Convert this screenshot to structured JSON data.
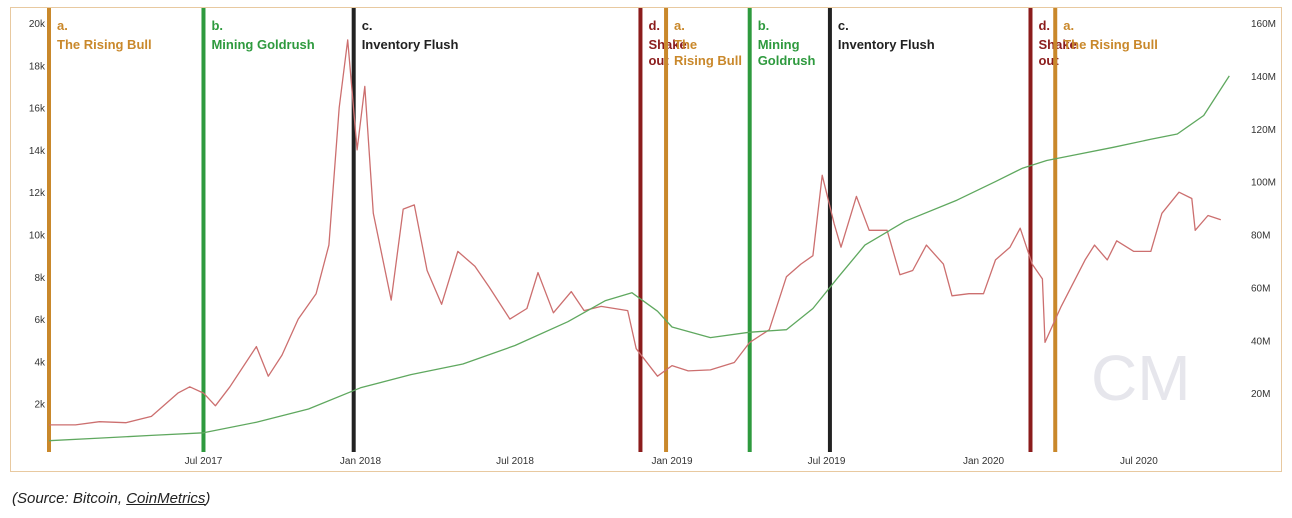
{
  "source": {
    "prefix": "(Source: Bitcoin, ",
    "link": "CoinMetrics",
    "suffix": ")"
  },
  "watermark": "CM",
  "colors": {
    "price_line": "#cc6f6f",
    "activity_line": "#5fa85f",
    "rising_bull": "#c9882b",
    "mining_goldrush": "#2e9a3e",
    "inventory_flush": "#222222",
    "shakeout": "#8b1c1c"
  },
  "chart_data": {
    "type": "line",
    "x_range": [
      "2017-01-01",
      "2020-10-31"
    ],
    "x_ticks": [
      {
        "date": "2017-07-01",
        "label": "Jul 2017"
      },
      {
        "date": "2018-01-01",
        "label": "Jan 2018"
      },
      {
        "date": "2018-07-01",
        "label": "Jul 2018"
      },
      {
        "date": "2019-01-01",
        "label": "Jan 2019"
      },
      {
        "date": "2019-07-01",
        "label": "Jul 2019"
      },
      {
        "date": "2020-01-01",
        "label": "Jan 2020"
      },
      {
        "date": "2020-07-01",
        "label": "Jul 2020"
      }
    ],
    "y_left": {
      "range": [
        0,
        20000
      ],
      "ticks": [
        {
          "value": 2000,
          "label": "2k"
        },
        {
          "value": 4000,
          "label": "4k"
        },
        {
          "value": 6000,
          "label": "6k"
        },
        {
          "value": 8000,
          "label": "8k"
        },
        {
          "value": 10000,
          "label": "10k"
        },
        {
          "value": 12000,
          "label": "12k"
        },
        {
          "value": 14000,
          "label": "14k"
        },
        {
          "value": 16000,
          "label": "16k"
        },
        {
          "value": 18000,
          "label": "18k"
        },
        {
          "value": 20000,
          "label": "20k"
        }
      ]
    },
    "y_right": {
      "range": [
        0,
        160000000
      ],
      "ticks": [
        {
          "value": 20000000,
          "label": "20M"
        },
        {
          "value": 40000000,
          "label": "40M"
        },
        {
          "value": 60000000,
          "label": "60M"
        },
        {
          "value": 80000000,
          "label": "80M"
        },
        {
          "value": 100000000,
          "label": "100M"
        },
        {
          "value": 120000000,
          "label": "120M"
        },
        {
          "value": 140000000,
          "label": "140M"
        },
        {
          "value": 160000000,
          "label": "160M"
        }
      ]
    },
    "series": [
      {
        "axis": "left",
        "color": "#cc6f6f",
        "points": [
          [
            "2017-01-01",
            1000
          ],
          [
            "2017-02-01",
            1000
          ],
          [
            "2017-03-01",
            1150
          ],
          [
            "2017-04-01",
            1100
          ],
          [
            "2017-05-01",
            1400
          ],
          [
            "2017-06-01",
            2500
          ],
          [
            "2017-06-15",
            2800
          ],
          [
            "2017-07-01",
            2500
          ],
          [
            "2017-07-15",
            1900
          ],
          [
            "2017-08-01",
            2800
          ],
          [
            "2017-09-01",
            4700
          ],
          [
            "2017-09-15",
            3300
          ],
          [
            "2017-10-01",
            4300
          ],
          [
            "2017-10-20",
            6000
          ],
          [
            "2017-11-10",
            7200
          ],
          [
            "2017-11-25",
            9500
          ],
          [
            "2017-12-07",
            16000
          ],
          [
            "2017-12-17",
            19200
          ],
          [
            "2017-12-28",
            14000
          ],
          [
            "2018-01-06",
            17000
          ],
          [
            "2018-01-16",
            11000
          ],
          [
            "2018-02-06",
            6900
          ],
          [
            "2018-02-20",
            11200
          ],
          [
            "2018-03-05",
            11400
          ],
          [
            "2018-03-20",
            8300
          ],
          [
            "2018-04-06",
            6700
          ],
          [
            "2018-04-25",
            9200
          ],
          [
            "2018-05-15",
            8500
          ],
          [
            "2018-06-01",
            7500
          ],
          [
            "2018-06-25",
            6000
          ],
          [
            "2018-07-15",
            6500
          ],
          [
            "2018-07-28",
            8200
          ],
          [
            "2018-08-15",
            6300
          ],
          [
            "2018-09-05",
            7300
          ],
          [
            "2018-09-20",
            6400
          ],
          [
            "2018-10-10",
            6600
          ],
          [
            "2018-11-10",
            6400
          ],
          [
            "2018-11-20",
            4600
          ],
          [
            "2018-12-15",
            3300
          ],
          [
            "2019-01-01",
            3800
          ],
          [
            "2019-01-20",
            3550
          ],
          [
            "2019-02-15",
            3600
          ],
          [
            "2019-03-15",
            3950
          ],
          [
            "2019-04-02",
            4900
          ],
          [
            "2019-04-25",
            5500
          ],
          [
            "2019-05-15",
            8000
          ],
          [
            "2019-06-01",
            8600
          ],
          [
            "2019-06-15",
            9000
          ],
          [
            "2019-06-26",
            12800
          ],
          [
            "2019-07-10",
            10500
          ],
          [
            "2019-07-18",
            9400
          ],
          [
            "2019-08-05",
            11800
          ],
          [
            "2019-08-20",
            10200
          ],
          [
            "2019-09-10",
            10200
          ],
          [
            "2019-09-25",
            8100
          ],
          [
            "2019-10-10",
            8300
          ],
          [
            "2019-10-26",
            9500
          ],
          [
            "2019-11-15",
            8600
          ],
          [
            "2019-11-25",
            7100
          ],
          [
            "2019-12-15",
            7200
          ],
          [
            "2020-01-01",
            7200
          ],
          [
            "2020-01-15",
            8800
          ],
          [
            "2020-02-01",
            9400
          ],
          [
            "2020-02-13",
            10300
          ],
          [
            "2020-02-27",
            8600
          ],
          [
            "2020-03-10",
            7900
          ],
          [
            "2020-03-13",
            4900
          ],
          [
            "2020-04-01",
            6600
          ],
          [
            "2020-04-29",
            8800
          ],
          [
            "2020-05-10",
            9500
          ],
          [
            "2020-05-25",
            8800
          ],
          [
            "2020-06-05",
            9700
          ],
          [
            "2020-06-25",
            9200
          ],
          [
            "2020-07-15",
            9200
          ],
          [
            "2020-07-28",
            11000
          ],
          [
            "2020-08-17",
            12000
          ],
          [
            "2020-09-01",
            11700
          ],
          [
            "2020-09-05",
            10200
          ],
          [
            "2020-09-20",
            10900
          ],
          [
            "2020-10-05",
            10700
          ]
        ]
      },
      {
        "axis": "right",
        "color": "#5fa85f",
        "points": [
          [
            "2017-01-01",
            2000000
          ],
          [
            "2017-03-01",
            3000000
          ],
          [
            "2017-05-01",
            4000000
          ],
          [
            "2017-07-01",
            5000000
          ],
          [
            "2017-09-01",
            9000000
          ],
          [
            "2017-11-01",
            14000000
          ],
          [
            "2018-01-01",
            22000000
          ],
          [
            "2018-03-01",
            27000000
          ],
          [
            "2018-05-01",
            31000000
          ],
          [
            "2018-07-01",
            38000000
          ],
          [
            "2018-09-01",
            47000000
          ],
          [
            "2018-10-15",
            55000000
          ],
          [
            "2018-11-15",
            58000000
          ],
          [
            "2018-12-15",
            51000000
          ],
          [
            "2019-01-01",
            45000000
          ],
          [
            "2019-02-15",
            41000000
          ],
          [
            "2019-04-01",
            43000000
          ],
          [
            "2019-05-15",
            44000000
          ],
          [
            "2019-06-15",
            52000000
          ],
          [
            "2019-07-15",
            64000000
          ],
          [
            "2019-08-15",
            76000000
          ],
          [
            "2019-10-01",
            85000000
          ],
          [
            "2019-12-01",
            93000000
          ],
          [
            "2020-01-15",
            100000000
          ],
          [
            "2020-02-15",
            105000000
          ],
          [
            "2020-03-15",
            108000000
          ],
          [
            "2020-04-15",
            110000000
          ],
          [
            "2020-06-01",
            113000000
          ],
          [
            "2020-07-15",
            116000000
          ],
          [
            "2020-08-15",
            118000000
          ],
          [
            "2020-09-15",
            125000000
          ],
          [
            "2020-10-15",
            140000000
          ]
        ]
      }
    ],
    "phases": [
      {
        "letter": "a.",
        "name": "The Rising Bull",
        "name_lines": [
          "The Rising Bull"
        ],
        "start": "2017-01-01",
        "color": "#c9882b"
      },
      {
        "letter": "b.",
        "name": "Mining Goldrush",
        "name_lines": [
          "Mining Goldrush"
        ],
        "start": "2017-07-01",
        "color": "#2e9a3e"
      },
      {
        "letter": "c.",
        "name": "Inventory Flush",
        "name_lines": [
          "Inventory Flush"
        ],
        "start": "2017-12-24",
        "color": "#222222"
      },
      {
        "letter": "d.",
        "name": "Shake out",
        "name_lines": [
          "Shake",
          "out"
        ],
        "start": "2018-11-25",
        "color": "#8b1c1c"
      },
      {
        "letter": "a.",
        "name": "The Rising Bull",
        "name_lines": [
          "The",
          "Rising Bull"
        ],
        "start": "2018-12-25",
        "color": "#c9882b"
      },
      {
        "letter": "b.",
        "name": "Mining Goldrush",
        "name_lines": [
          "Mining",
          "Goldrush"
        ],
        "start": "2019-04-02",
        "color": "#2e9a3e"
      },
      {
        "letter": "c.",
        "name": "Inventory Flush",
        "name_lines": [
          "Inventory Flush"
        ],
        "start": "2019-07-05",
        "color": "#222222"
      },
      {
        "letter": "d.",
        "name": "Shake out",
        "name_lines": [
          "Shake",
          "out"
        ],
        "start": "2020-02-25",
        "color": "#8b1c1c"
      },
      {
        "letter": "a.",
        "name": "The Rising Bull",
        "name_lines": [
          "The Rising Bull"
        ],
        "start": "2020-03-25",
        "color": "#c9882b"
      }
    ],
    "grid": false,
    "legend": "none"
  }
}
